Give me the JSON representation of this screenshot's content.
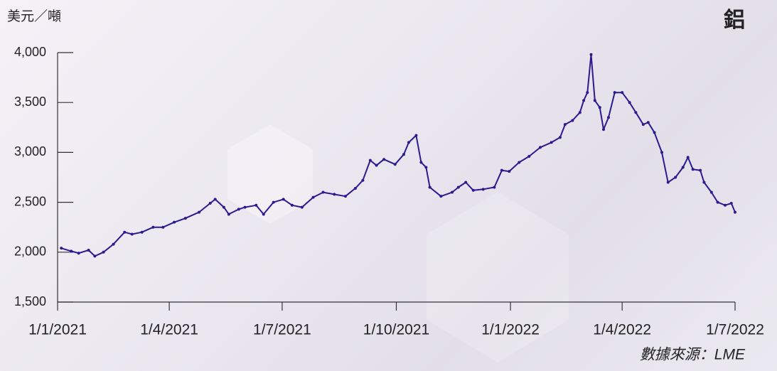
{
  "chart_data": {
    "type": "line",
    "title": "鋁",
    "y_axis_label": "美元／噸",
    "source": "數據來源：LME",
    "xlim": [
      "2021-01-01",
      "2022-07-01"
    ],
    "xticks": [
      {
        "value": "2021-01-01",
        "label": "1/1/2021"
      },
      {
        "value": "2021-04-01",
        "label": "1/4/2021"
      },
      {
        "value": "2021-07-01",
        "label": "1/7/2021"
      },
      {
        "value": "2021-10-01",
        "label": "1/10/2021"
      },
      {
        "value": "2022-01-01",
        "label": "1/1/2022"
      },
      {
        "value": "2022-04-01",
        "label": "1/4/2022"
      },
      {
        "value": "2022-07-01",
        "label": "1/7/2022"
      }
    ],
    "ylim": [
      1500,
      4000
    ],
    "yticks": [
      {
        "value": 1500,
        "label": "1,500"
      },
      {
        "value": 2000,
        "label": "2,000"
      },
      {
        "value": 2500,
        "label": "2,500"
      },
      {
        "value": 3000,
        "label": "3,000"
      },
      {
        "value": 3500,
        "label": "3,500"
      },
      {
        "value": 4000,
        "label": "4,000"
      }
    ],
    "x": [
      "2021-01-04",
      "2021-01-12",
      "2021-01-18",
      "2021-01-26",
      "2021-01-31",
      "2021-02-07",
      "2021-02-15",
      "2021-02-24",
      "2021-03-02",
      "2021-03-10",
      "2021-03-19",
      "2021-03-27",
      "2021-04-05",
      "2021-04-14",
      "2021-04-25",
      "2021-05-04",
      "2021-05-08",
      "2021-05-15",
      "2021-05-19",
      "2021-05-27",
      "2021-06-01",
      "2021-06-10",
      "2021-06-16",
      "2021-06-24",
      "2021-07-02",
      "2021-07-09",
      "2021-07-17",
      "2021-07-26",
      "2021-08-03",
      "2021-08-12",
      "2021-08-21",
      "2021-08-29",
      "2021-09-04",
      "2021-09-10",
      "2021-09-15",
      "2021-09-21",
      "2021-09-30",
      "2021-10-07",
      "2021-10-11",
      "2021-10-17",
      "2021-10-21",
      "2021-10-25",
      "2021-10-28",
      "2021-11-06",
      "2021-11-15",
      "2021-11-20",
      "2021-11-26",
      "2021-12-02",
      "2021-12-10",
      "2021-12-19",
      "2021-12-25",
      "2021-12-31",
      "2022-01-08",
      "2022-01-16",
      "2022-01-25",
      "2022-02-03",
      "2022-02-10",
      "2022-02-14",
      "2022-02-20",
      "2022-02-26",
      "2022-03-01",
      "2022-03-04",
      "2022-03-07",
      "2022-03-10",
      "2022-03-14",
      "2022-03-17",
      "2022-03-21",
      "2022-03-26",
      "2022-04-01",
      "2022-04-07",
      "2022-04-12",
      "2022-04-18",
      "2022-04-22",
      "2022-04-27",
      "2022-05-03",
      "2022-05-08",
      "2022-05-14",
      "2022-05-20",
      "2022-05-24",
      "2022-05-28",
      "2022-06-03",
      "2022-06-06",
      "2022-06-12",
      "2022-06-17",
      "2022-06-23",
      "2022-06-28",
      "2022-07-01"
    ],
    "series": [
      {
        "name": "鋁",
        "color": "#2b1b8e",
        "values": [
          2040,
          2010,
          1990,
          2020,
          1960,
          2000,
          2080,
          2200,
          2180,
          2200,
          2250,
          2250,
          2300,
          2340,
          2400,
          2490,
          2530,
          2450,
          2380,
          2430,
          2450,
          2470,
          2380,
          2500,
          2530,
          2470,
          2450,
          2550,
          2600,
          2580,
          2560,
          2640,
          2720,
          2920,
          2870,
          2930,
          2880,
          2980,
          3100,
          3170,
          2900,
          2850,
          2650,
          2560,
          2600,
          2650,
          2700,
          2620,
          2630,
          2650,
          2820,
          2810,
          2900,
          2960,
          3050,
          3100,
          3150,
          3280,
          3320,
          3400,
          3520,
          3600,
          3980,
          3520,
          3450,
          3230,
          3350,
          3600,
          3600,
          3500,
          3400,
          3280,
          3300,
          3200,
          3000,
          2700,
          2750,
          2850,
          2950,
          2830,
          2820,
          2700,
          2600,
          2500,
          2470,
          2490,
          2400
        ]
      }
    ]
  }
}
